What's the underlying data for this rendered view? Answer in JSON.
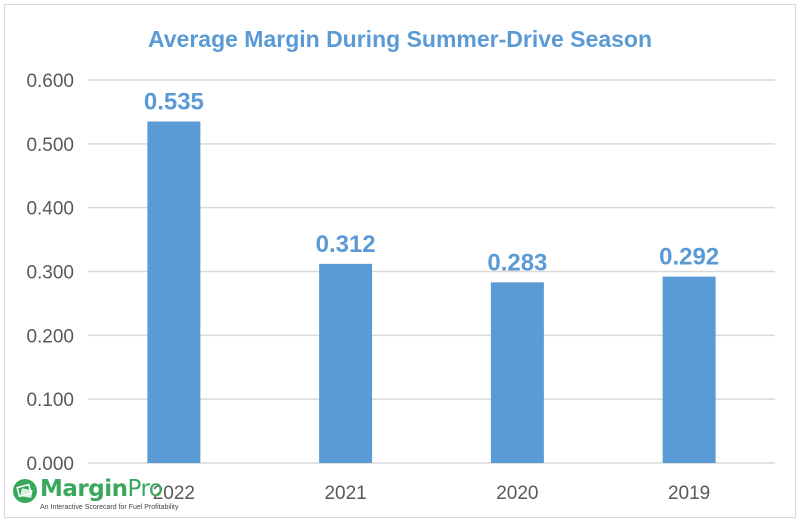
{
  "chart_data": {
    "type": "bar",
    "title": "Average Margin During Summer-Drive Season",
    "categories": [
      "2022",
      "2021",
      "2020",
      "2019"
    ],
    "values": [
      0.535,
      0.312,
      0.283,
      0.292
    ],
    "data_labels": [
      "0.535",
      "0.312",
      "0.283",
      "0.292"
    ],
    "ylim": [
      0,
      0.6
    ],
    "yticks": [
      "0.000",
      "0.100",
      "0.200",
      "0.300",
      "0.400",
      "0.500",
      "0.600"
    ],
    "grid": true,
    "colors": {
      "bar": "#5b9bd5",
      "title": "#5b9bd5",
      "label": "#5b9bd5",
      "grid": "#d9d9d9",
      "tick": "#595959"
    }
  },
  "logo": {
    "name_bold": "Margin",
    "name_light": "Pro",
    "tagline": "An Interactive Scorecard for Fuel Profitability",
    "color": "#3aa85a"
  }
}
